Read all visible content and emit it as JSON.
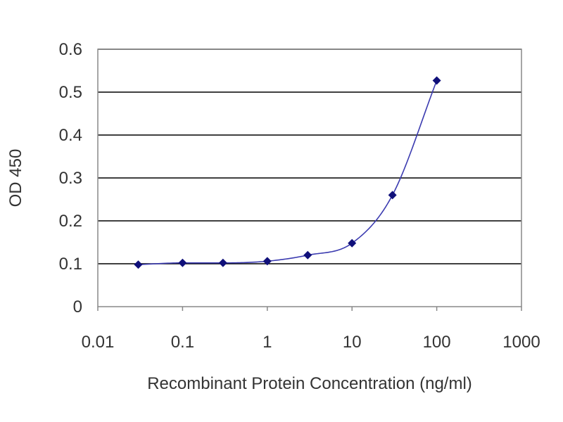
{
  "chart_data": {
    "type": "line",
    "title": "",
    "xlabel": "Recombinant Protein Concentration (ng/ml)",
    "ylabel": "OD 450",
    "x_scale": "log",
    "xlim": [
      0.01,
      1000
    ],
    "ylim": [
      0,
      0.6
    ],
    "x_ticks": [
      "0.01",
      "0.1",
      "1",
      "10",
      "100",
      "1000"
    ],
    "y_ticks": [
      "0",
      "0.1",
      "0.2",
      "0.3",
      "0.4",
      "0.5",
      "0.6"
    ],
    "grid": "horizontal",
    "legend": "none",
    "series": [
      {
        "x": [
          0.03,
          0.1,
          0.3,
          1,
          3,
          10,
          30,
          100
        ],
        "y": [
          0.098,
          0.102,
          0.102,
          0.106,
          0.12,
          0.148,
          0.26,
          0.527
        ],
        "color": "#1f1f8f",
        "fit": "sigmoidal"
      }
    ],
    "colors": {
      "line": "#3b3bb0",
      "marker": "#10107a",
      "grid": "#000000",
      "plot_border": "#888888"
    }
  }
}
